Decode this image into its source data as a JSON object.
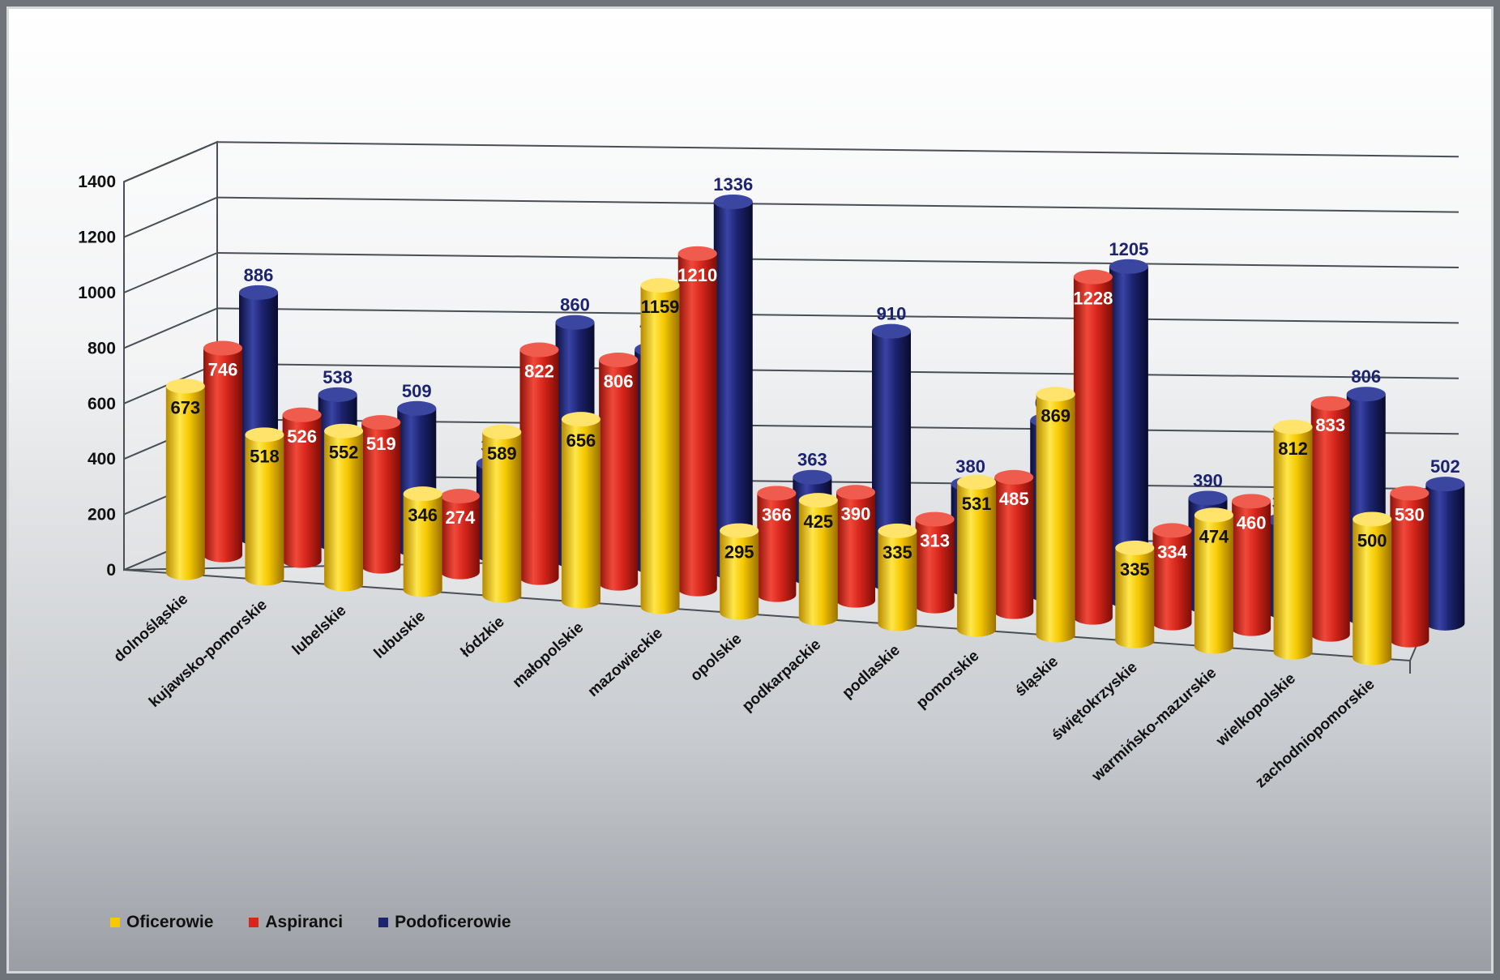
{
  "chart_data": {
    "type": "bar",
    "title": "",
    "xlabel": "",
    "ylabel": "",
    "ylim": [
      0,
      1400
    ],
    "yticks": [
      0,
      200,
      400,
      600,
      800,
      1000,
      1200,
      1400
    ],
    "grid": true,
    "legend_position": "bottom-left",
    "categories": [
      "dolnośląskie",
      "kujawsko-pomorskie",
      "lubelskie",
      "lubuskie",
      "łódzkie",
      "małopolskie",
      "mazowieckie",
      "opolskie",
      "podkarpackie",
      "podlaskie",
      "pomorskie",
      "śląskie",
      "świętokrzyskie",
      "warmińsko-mazurskie",
      "wielkopolskie",
      "zachodniopomorskie"
    ],
    "series": [
      {
        "name": "Oficerowie",
        "color": "#f5c800",
        "label_color": "#111111",
        "values": [
          673,
          518,
          552,
          346,
          589,
          656,
          1159,
          295,
          425,
          335,
          531,
          869,
          335,
          474,
          812,
          500
        ]
      },
      {
        "name": "Aspiranci",
        "color": "#d8261c",
        "label_color": "#ffffff",
        "values": [
          746,
          526,
          519,
          274,
          822,
          806,
          1210,
          366,
          390,
          313,
          485,
          1228,
          334,
          460,
          833,
          530
        ]
      },
      {
        "name": "Podoficerowie",
        "color": "#1c2470",
        "label_color": "#1c2470",
        "values": [
          886,
          538,
          509,
          331,
          860,
          783,
          1336,
          363,
          910,
          380,
          630,
          1205,
          390,
          332,
          806,
          502
        ]
      }
    ]
  }
}
